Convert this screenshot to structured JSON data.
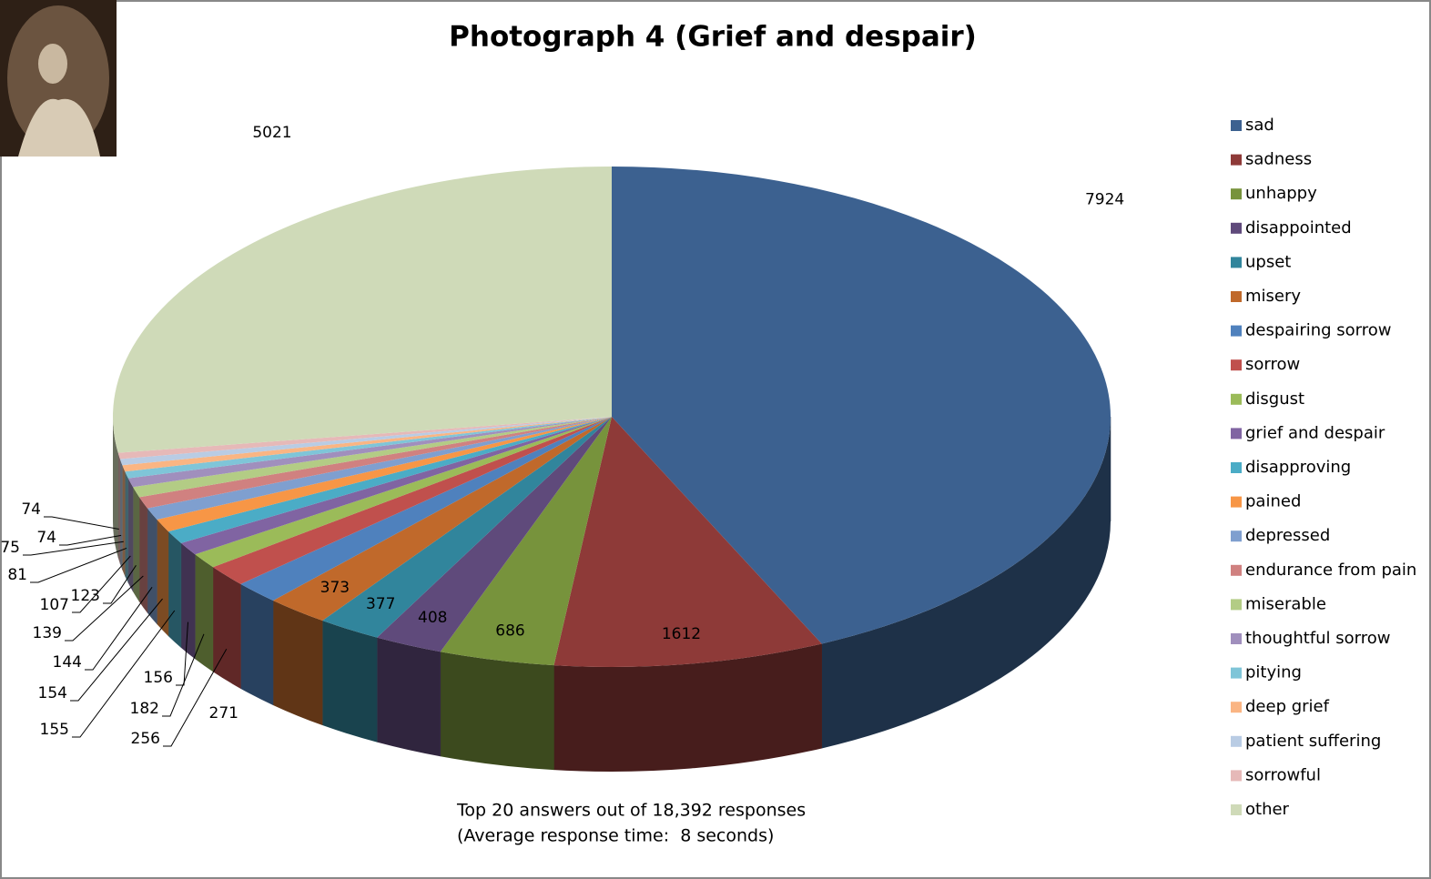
{
  "chart_data": {
    "type": "pie3d",
    "title": "Photograph 4 (Grief and despair)",
    "annotations": [
      "Top 20 answers out of 18,392 responses",
      "(Average response time:  8 seconds)"
    ],
    "categories": [
      "sad",
      "sadness",
      "unhappy",
      "disappointed",
      "upset",
      "misery",
      "despairing sorrow",
      "sorrow",
      "disgust",
      "grief and despair",
      "disapproving",
      "pained",
      "depressed",
      "endurance from pain",
      "miserable",
      "thoughtful sorrow",
      "pitying",
      "deep grief",
      "patient suffering",
      "sorrowful",
      "other"
    ],
    "values": [
      7924,
      1612,
      686,
      408,
      377,
      373,
      271,
      256,
      182,
      156,
      155,
      154,
      144,
      139,
      123,
      107,
      81,
      75,
      74,
      74,
      5021
    ],
    "colors": [
      "#3c6190",
      "#8e3a38",
      "#77933c",
      "#5f4a7b",
      "#31859c",
      "#c0692b",
      "#4f81bd",
      "#c0504d",
      "#9bbb59",
      "#8064a2",
      "#4bacc6",
      "#f79646",
      "#7f9fcf",
      "#d08180",
      "#b3cc85",
      "#a08fbd",
      "#7fc5d8",
      "#fab583",
      "#b9cce4",
      "#e6b9b8",
      "#cfdab8"
    ],
    "legend": "right"
  }
}
